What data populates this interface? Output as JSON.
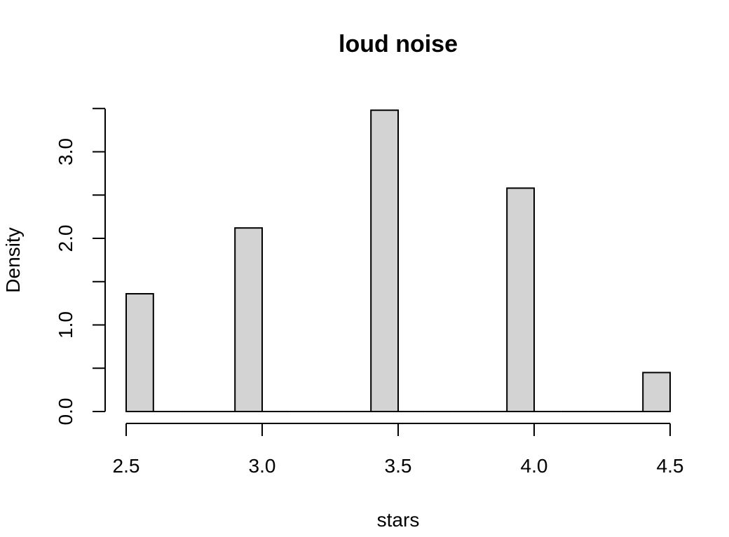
{
  "chart_data": {
    "type": "bar",
    "title": "loud noise",
    "xlabel": "stars",
    "ylabel": "Density",
    "x_ticks": [
      "2.5",
      "3.0",
      "3.5",
      "4.0",
      "4.5"
    ],
    "x_tick_values": [
      2.5,
      3.0,
      3.5,
      4.0,
      4.5
    ],
    "y_ticks": [
      "0.0",
      "1.0",
      "2.0",
      "3.0"
    ],
    "y_tick_values": [
      0,
      1,
      2,
      3
    ],
    "xlim": [
      2.5,
      4.5
    ],
    "ylim": [
      0,
      3.5
    ],
    "bin_width": 0.1,
    "bins": [
      {
        "start": 2.5,
        "end": 2.6,
        "density": 1.36
      },
      {
        "start": 2.6,
        "end": 2.7,
        "density": 0
      },
      {
        "start": 2.7,
        "end": 2.8,
        "density": 0
      },
      {
        "start": 2.8,
        "end": 2.9,
        "density": 0
      },
      {
        "start": 2.9,
        "end": 3.0,
        "density": 2.12
      },
      {
        "start": 3.0,
        "end": 3.1,
        "density": 0
      },
      {
        "start": 3.1,
        "end": 3.2,
        "density": 0
      },
      {
        "start": 3.2,
        "end": 3.3,
        "density": 0
      },
      {
        "start": 3.3,
        "end": 3.4,
        "density": 0
      },
      {
        "start": 3.4,
        "end": 3.5,
        "density": 3.48
      },
      {
        "start": 3.5,
        "end": 3.6,
        "density": 0
      },
      {
        "start": 3.6,
        "end": 3.7,
        "density": 0
      },
      {
        "start": 3.7,
        "end": 3.8,
        "density": 0
      },
      {
        "start": 3.8,
        "end": 3.9,
        "density": 0
      },
      {
        "start": 3.9,
        "end": 4.0,
        "density": 2.58
      },
      {
        "start": 4.0,
        "end": 4.1,
        "density": 0
      },
      {
        "start": 4.1,
        "end": 4.2,
        "density": 0
      },
      {
        "start": 4.2,
        "end": 4.3,
        "density": 0
      },
      {
        "start": 4.3,
        "end": 4.4,
        "density": 0
      },
      {
        "start": 4.4,
        "end": 4.5,
        "density": 0.45
      }
    ],
    "bar_fill": "#d3d3d3",
    "bar_stroke": "#000000",
    "grid": false
  }
}
